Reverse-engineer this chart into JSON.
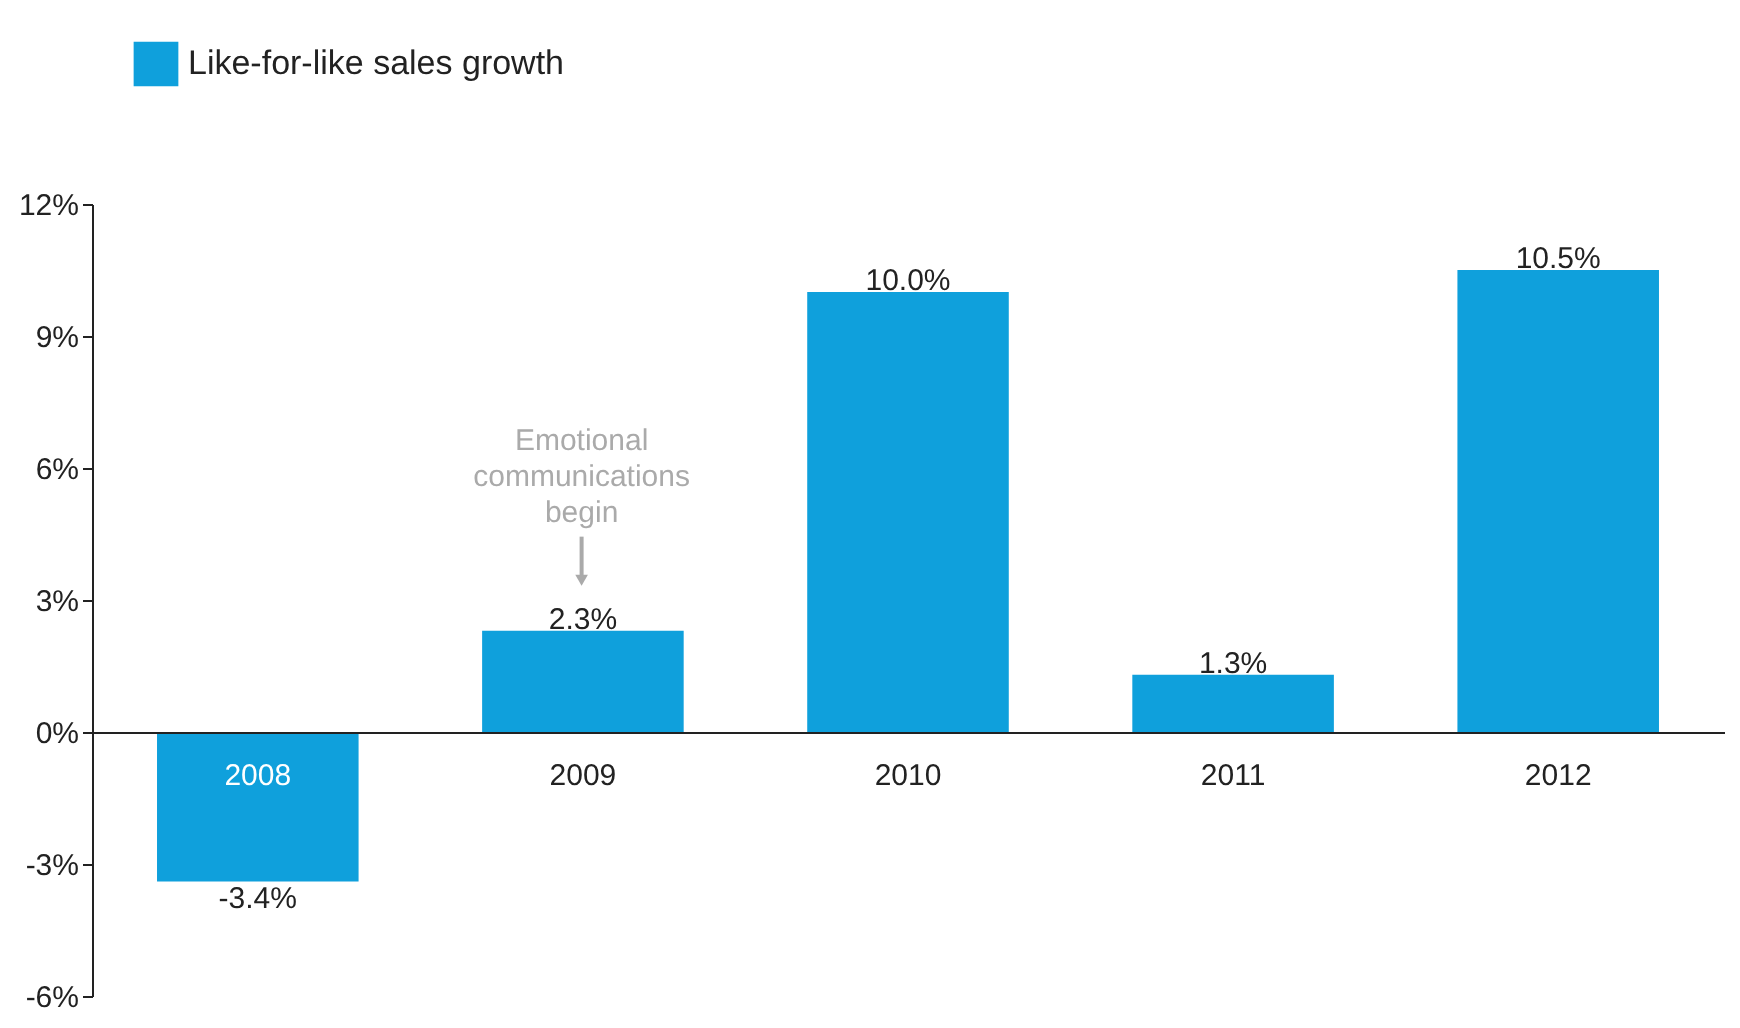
{
  "chart_data": {
    "type": "bar",
    "categories": [
      "2008",
      "2009",
      "2010",
      "2011",
      "2012"
    ],
    "series": [
      {
        "name": "Like-for-like sales growth",
        "color": "#0fa0dc",
        "values": [
          -3.4,
          2.3,
          10.0,
          1.3,
          10.5
        ]
      }
    ],
    "value_labels": [
      "-3.4%",
      "2.3%",
      "10.0%",
      "1.3%",
      "10.5%"
    ],
    "ylim": [
      -6,
      12
    ],
    "yticks": [
      {
        "value": -6,
        "label": "-6%"
      },
      {
        "value": -3,
        "label": "-3%"
      },
      {
        "value": 0,
        "label": "0%"
      },
      {
        "value": 3,
        "label": "3%"
      },
      {
        "value": 6,
        "label": "6%"
      },
      {
        "value": 9,
        "label": "9%"
      },
      {
        "value": 12,
        "label": "12%"
      }
    ],
    "annotations": [
      "Emotional communications begin"
    ],
    "legend": "top left"
  }
}
